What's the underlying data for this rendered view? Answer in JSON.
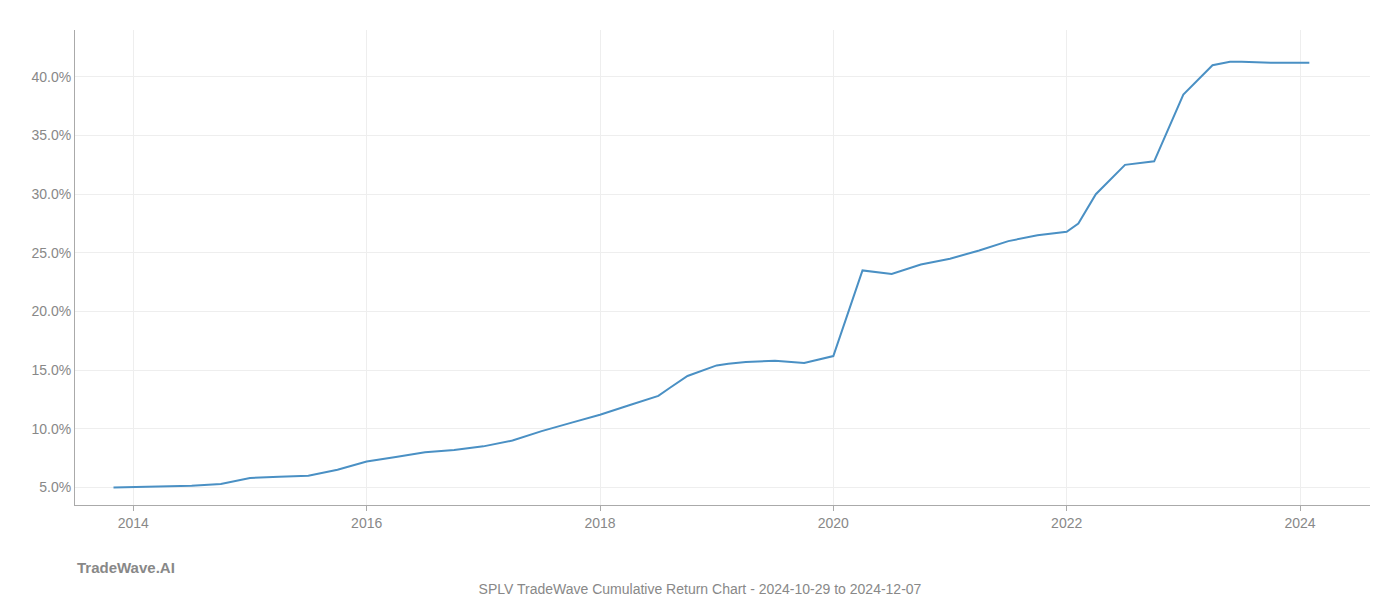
{
  "chart_data": {
    "type": "line",
    "title": "SPLV TradeWave Cumulative Return Chart - 2024-10-29 to 2024-12-07",
    "annotations": [
      "TradeWave.AI"
    ],
    "color": "#4a90c4",
    "grid": true,
    "x": [
      2013.83,
      2014.0,
      2014.25,
      2014.5,
      2014.75,
      2015.0,
      2015.25,
      2015.5,
      2015.75,
      2016.0,
      2016.25,
      2016.5,
      2016.75,
      2017.0,
      2017.25,
      2017.5,
      2017.75,
      2018.0,
      2018.25,
      2018.5,
      2018.6,
      2018.75,
      2019.0,
      2019.1,
      2019.25,
      2019.5,
      2019.75,
      2020.0,
      2020.25,
      2020.5,
      2020.75,
      2021.0,
      2021.25,
      2021.5,
      2021.75,
      2022.0,
      2022.1,
      2022.25,
      2022.5,
      2022.75,
      2023.0,
      2023.25,
      2023.4,
      2023.5,
      2023.75,
      2024.0,
      2024.08
    ],
    "values": [
      5.0,
      5.05,
      5.1,
      5.15,
      5.3,
      5.8,
      5.9,
      6.0,
      6.5,
      7.2,
      7.6,
      8.0,
      8.2,
      8.5,
      9.0,
      9.8,
      10.5,
      11.2,
      12.0,
      12.8,
      13.5,
      14.5,
      15.4,
      15.55,
      15.7,
      15.8,
      15.6,
      16.2,
      23.5,
      23.2,
      24.0,
      24.5,
      25.2,
      26.0,
      26.5,
      26.8,
      27.5,
      30.0,
      32.5,
      32.8,
      38.5,
      41.0,
      41.3,
      41.3,
      41.2,
      41.2,
      41.2
    ],
    "xlim": [
      2013.5,
      2024.6
    ],
    "ylim": [
      3.5,
      44.0
    ],
    "xticks": [
      2014,
      2016,
      2018,
      2020,
      2022,
      2024
    ],
    "yticks": [
      {
        "value": 5.0,
        "label": "5.0%"
      },
      {
        "value": 10.0,
        "label": "10.0%"
      },
      {
        "value": 15.0,
        "label": "15.0%"
      },
      {
        "value": 20.0,
        "label": "20.0%"
      },
      {
        "value": 25.0,
        "label": "25.0%"
      },
      {
        "value": 30.0,
        "label": "30.0%"
      },
      {
        "value": 35.0,
        "label": "35.0%"
      },
      {
        "value": 40.0,
        "label": "40.0%"
      }
    ]
  }
}
